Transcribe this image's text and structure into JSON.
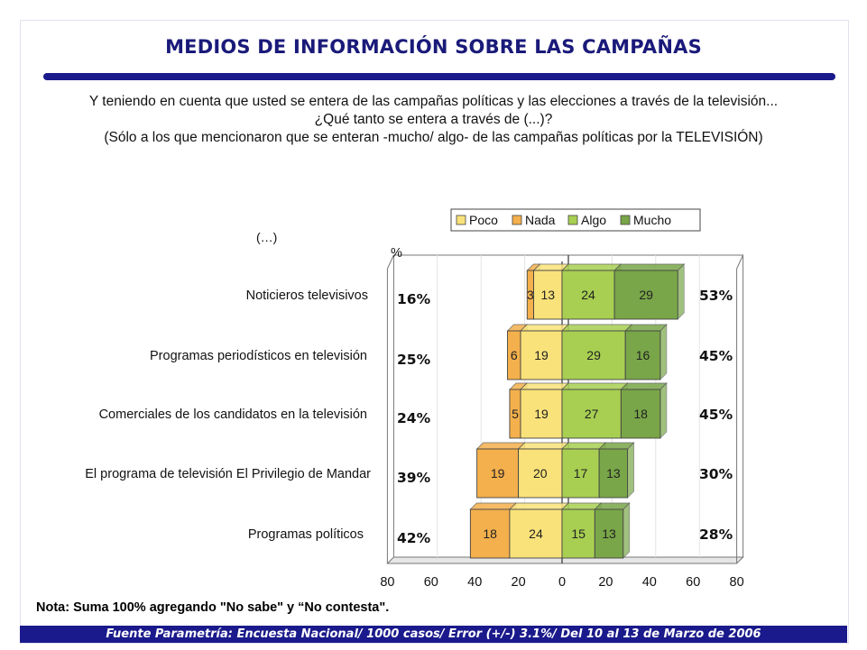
{
  "title": "MEDIOS DE INFORMACIÓN SOBRE LAS CAMPAÑAS",
  "question": [
    "Y teniendo en cuenta que usted se entera de las campañas políticas y las elecciones a través de la televisión...",
    "¿Qué tanto se entera a través de (...)?",
    "(Sólo a los que mencionaron que se enteran -mucho/ algo- de las campañas políticas por la TELEVISIÓN)"
  ],
  "ellipsis_label": "(…)",
  "note": "Nota: Suma 100% agregando \"No sabe\" y “No contesta\".",
  "footer": "Fuente Parametría: Encuesta Nacional/ 1000 casos/ Error (+/-) 3.1%/ Del 10 al 13 de Marzo  de 2006",
  "colors": {
    "Poco": "#f9e27a",
    "Nada": "#f4b04c",
    "Algo": "#a8cf52",
    "Mucho": "#79a648",
    "title": "#1a1a7a",
    "rule": "#1a1a8c"
  },
  "chart_data": {
    "type": "bar",
    "orientation": "horizontal-diverging",
    "ylabel": "%",
    "xlim": [
      -80,
      80
    ],
    "xticks": [
      "80",
      "60",
      "40",
      "20",
      "0",
      "20",
      "40",
      "60",
      "80"
    ],
    "legend": [
      "Poco",
      "Nada",
      "Algo",
      "Mucho"
    ],
    "legend_position": "top",
    "categories": [
      "Noticieros televisivos",
      "Programas periodísticos en televisión",
      "Comerciales de los candidatos en la televisión",
      "El programa de televisión El Privilegio de Mandar",
      "Programas políticos"
    ],
    "series": [
      {
        "name": "Poco",
        "side": "negative",
        "values": [
          13,
          19,
          19,
          20,
          24
        ]
      },
      {
        "name": "Nada",
        "side": "negative",
        "values": [
          3,
          6,
          5,
          19,
          18
        ]
      },
      {
        "name": "Algo",
        "side": "positive",
        "values": [
          24,
          29,
          27,
          17,
          15
        ]
      },
      {
        "name": "Mucho",
        "side": "positive",
        "values": [
          29,
          16,
          18,
          13,
          13
        ]
      }
    ],
    "negative_totals": [
      "16%",
      "25%",
      "24%",
      "39%",
      "42%"
    ],
    "positive_totals": [
      "53%",
      "45%",
      "45%",
      "30%",
      "28%"
    ]
  }
}
